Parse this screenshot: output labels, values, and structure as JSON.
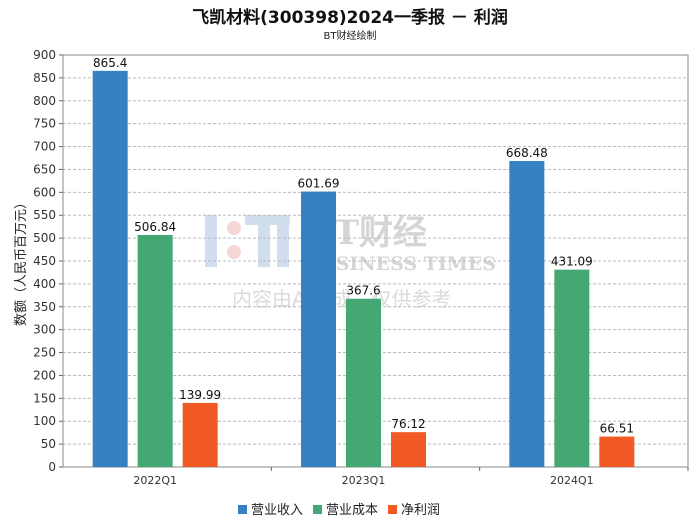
{
  "title": "飞凯材料(300398)2024一季报 － 利润",
  "subtitle": "BT财经绘制",
  "watermark": {
    "logo_text": "BT财经",
    "logo_sub": "BUSINESS TIMES",
    "notice": "内容由AI生成，仅供参考"
  },
  "chart_data": {
    "type": "bar",
    "title": "飞凯材料(300398)2024一季报 － 利润",
    "ylabel": "数额（人民币百万元）",
    "xlabel": "",
    "ylim": [
      0,
      900
    ],
    "yticks": [
      0,
      50,
      100,
      150,
      200,
      250,
      300,
      350,
      400,
      450,
      500,
      550,
      600,
      650,
      700,
      750,
      800,
      850,
      900
    ],
    "grid": true,
    "legend": "bottom",
    "categories": [
      "2022Q1",
      "2023Q1",
      "2024Q1"
    ],
    "series": [
      {
        "name": "营业收入",
        "color": "#3581c1",
        "values": [
          865.4,
          601.69,
          668.48
        ],
        "labels": [
          "865.4",
          "601.69",
          "668.48"
        ]
      },
      {
        "name": "营业成本",
        "color": "#45a874",
        "values": [
          506.84,
          367.6,
          431.09
        ],
        "labels": [
          "506.84",
          "367.6",
          "431.09"
        ]
      },
      {
        "name": "净利润",
        "color": "#f15a24",
        "values": [
          139.99,
          76.12,
          66.51
        ],
        "labels": [
          "139.99",
          "76.12",
          "66.51"
        ]
      }
    ]
  }
}
